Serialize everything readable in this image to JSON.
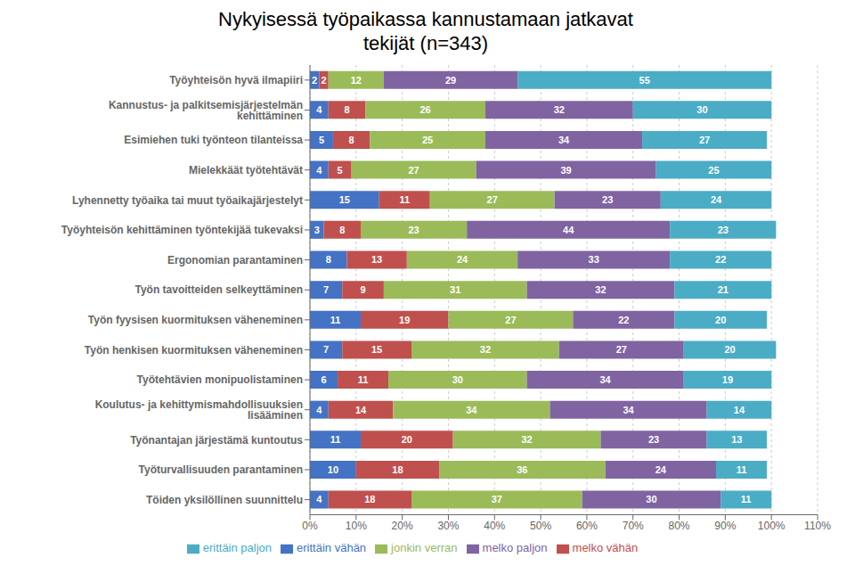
{
  "chart_data": {
    "type": "bar",
    "title": "Nykyisessä työpaikassa kannustamaan jatkavat\ntekijät (n=343)",
    "orientation": "horizontal",
    "stacked": true,
    "data_labels": true,
    "grid": true,
    "legend": "bottom",
    "categories": [
      "Työyhteisön hyvä ilmapiiri",
      "Kannustus- ja palkitsemisjärjestelmän kehittäminen",
      "Esimiehen tuki työnteon tilanteissa",
      "Mielekkäät työtehtävät",
      "Lyhennetty työaika tai muut työaikajärjestelyt",
      "Työyhteisön kehittäminen työntekijää tukevaksi",
      "Ergonomian parantaminen",
      "Työn tavoitteiden selkeyttäminen",
      "Työn fyysisen kuormituksen väheneminen",
      "Työn henkisen kuormituksen väheneminen",
      "Työtehtävien monipuolistaminen",
      "Koulutus- ja kehittymismahdollisuuksien lisääminen",
      "Työnantajan järjestämä kuntoutus",
      "Työturvallisuuden parantaminen",
      "Töiden yksilöllinen suunnittelu"
    ],
    "series": [
      {
        "name": "erittäin vähän",
        "color": "#4472C4",
        "values": [
          2,
          4,
          5,
          4,
          15,
          3,
          8,
          7,
          11,
          7,
          6,
          4,
          11,
          10,
          4
        ]
      },
      {
        "name": "melko vähän",
        "color": "#C0504D",
        "values": [
          2,
          8,
          8,
          5,
          11,
          8,
          13,
          9,
          19,
          15,
          11,
          14,
          20,
          18,
          18
        ]
      },
      {
        "name": "jonkin verran",
        "color": "#9BBB59",
        "values": [
          12,
          26,
          25,
          27,
          27,
          23,
          24,
          31,
          27,
          32,
          30,
          34,
          32,
          36,
          37
        ]
      },
      {
        "name": "melko paljon",
        "color": "#8064A2",
        "values": [
          29,
          32,
          34,
          39,
          23,
          44,
          33,
          32,
          22,
          27,
          34,
          34,
          23,
          24,
          30
        ]
      },
      {
        "name": "erittäin paljon",
        "color": "#4BACC6",
        "values": [
          55,
          30,
          27,
          25,
          24,
          23,
          22,
          21,
          20,
          20,
          19,
          14,
          13,
          11,
          11
        ]
      }
    ],
    "xlim": [
      0,
      110
    ],
    "xticks": [
      {
        "value": 0,
        "label": "0%"
      },
      {
        "value": 10,
        "label": "10%"
      },
      {
        "value": 20,
        "label": "20%"
      },
      {
        "value": 30,
        "label": "30%"
      },
      {
        "value": 40,
        "label": "40%"
      },
      {
        "value": 50,
        "label": "50%"
      },
      {
        "value": 60,
        "label": "60%"
      },
      {
        "value": 70,
        "label": "70%"
      },
      {
        "value": 80,
        "label": "80%"
      },
      {
        "value": 90,
        "label": "90%"
      },
      {
        "value": 100,
        "label": "100%"
      },
      {
        "value": 110,
        "label": "110%"
      }
    ]
  }
}
